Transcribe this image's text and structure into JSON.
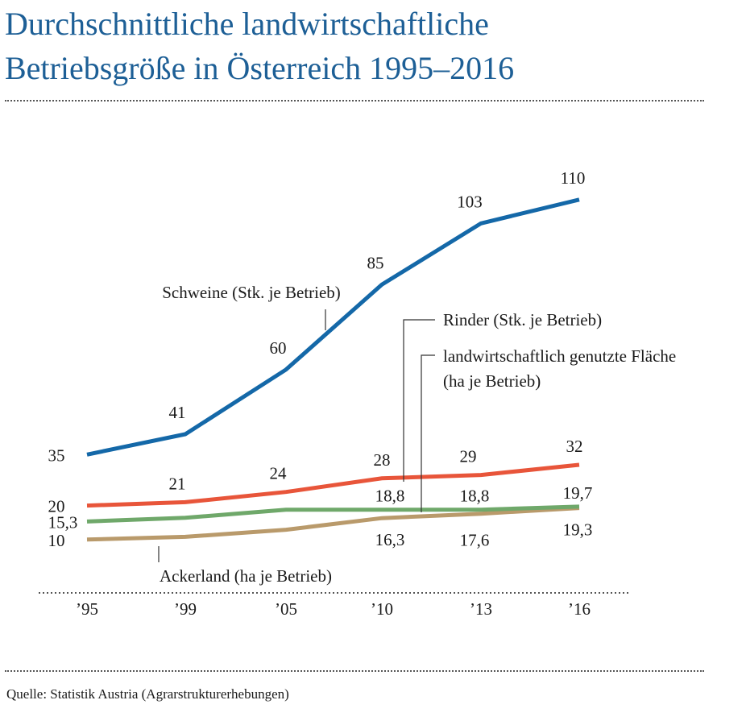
{
  "title": {
    "line1": "Durchschnittliche landwirtschaftliche",
    "line2": "Betriebsgröße in Österreich 1995–2016"
  },
  "source": "Quelle: Statistik Austria (Agrarstrukturerhebungen)",
  "chart_data": {
    "type": "line",
    "x": [
      "’95",
      "’99",
      "’05",
      "’10",
      "’13",
      "’16"
    ],
    "x_years": [
      1995,
      1999,
      2005,
      2010,
      2013,
      2016
    ],
    "ylim": [
      0,
      115
    ],
    "grid": false,
    "legend": "inline labels",
    "series": [
      {
        "name": "Schweine (Stk. je Betrieb)",
        "color": "#1468a8",
        "values": [
          35,
          41,
          60,
          85,
          103,
          110
        ],
        "labels": [
          "35",
          "41",
          "60",
          "85",
          "103",
          "110"
        ]
      },
      {
        "name": "Rinder (Stk. je Betrieb)",
        "color": "#e8553a",
        "values": [
          20,
          21,
          24,
          28,
          29,
          32
        ],
        "labels": [
          "20",
          "21",
          "24",
          "28",
          "29",
          "32"
        ]
      },
      {
        "name": "landwirtschaftlich genutzte Fläche (ha je Betrieb)",
        "name_lines": [
          "landwirtschaftlich genutzte Fläche",
          "(ha je Betrieb)"
        ],
        "color": "#6fa86a",
        "values": [
          15.3,
          16.4,
          18.8,
          18.8,
          18.8,
          19.7
        ],
        "labels": [
          "15,3",
          "",
          "",
          "18,8",
          "18,8",
          "19,7"
        ]
      },
      {
        "name": "Ackerland (ha je Betrieb)",
        "color": "#b99a6b",
        "values": [
          10,
          10.8,
          12.9,
          16.3,
          17.6,
          19.3
        ],
        "labels": [
          "10",
          "",
          "",
          "16,3",
          "17,6",
          "19,3"
        ]
      }
    ]
  }
}
